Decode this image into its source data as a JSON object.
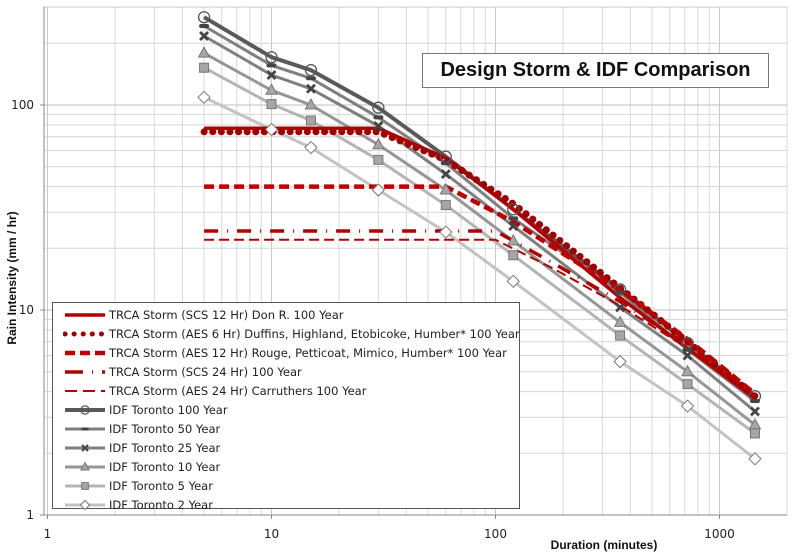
{
  "chart_data": {
    "type": "line",
    "title": "Design Storm & IDF Comparison",
    "xlabel": "Duration (minutes)",
    "ylabel": "Rain Intensity (mm / hr)",
    "x_scale": "log",
    "y_scale": "log",
    "xlim": [
      1,
      2100
    ],
    "ylim": [
      1,
      300
    ],
    "x_ticks": [
      "1",
      "10",
      "100",
      "1000"
    ],
    "y_ticks": [
      "1",
      "10",
      "100"
    ],
    "grid": true,
    "legend_position": "lower-left inside",
    "x": [
      5,
      10,
      15,
      30,
      60,
      120,
      360,
      720,
      1440
    ],
    "series": [
      {
        "name": "TRCA Storm (SCS 12 Hr) Don R. 100 Year",
        "style": "solid",
        "color": "#b30000",
        "points": [
          [
            5,
            77
          ],
          [
            30,
            77
          ],
          [
            60,
            55
          ],
          [
            120,
            31
          ],
          [
            360,
            11.5
          ],
          [
            720,
            6.5
          ],
          [
            1440,
            3.7
          ]
        ]
      },
      {
        "name": "TRCA Storm (AES 6 Hr) Duffins, Highland, Etobicoke, Humber* 100 Year",
        "style": "dotted",
        "color": "#a00000",
        "points": [
          [
            5,
            74
          ],
          [
            30,
            74
          ],
          [
            60,
            54
          ],
          [
            120,
            33
          ],
          [
            360,
            12.8
          ],
          [
            720,
            7.0
          ],
          [
            1440,
            3.8
          ]
        ]
      },
      {
        "name": "TRCA Storm (AES 12 Hr) Rouge, Petticoat, Mimico, Humber* 100 Year",
        "style": "dashed",
        "color": "#c00000",
        "points": [
          [
            5,
            40
          ],
          [
            60,
            40
          ],
          [
            120,
            27
          ],
          [
            360,
            12.5
          ],
          [
            720,
            7.2
          ],
          [
            1440,
            3.9
          ]
        ]
      },
      {
        "name": "TRCA Storm (SCS 24 Hr) 100 Year",
        "style": "dash-dot",
        "color": "#b30000",
        "points": [
          [
            5,
            24.3
          ],
          [
            100,
            24.3
          ],
          [
            180,
            17
          ],
          [
            360,
            11
          ],
          [
            720,
            6.7
          ],
          [
            1440,
            3.8
          ]
        ]
      },
      {
        "name": "TRCA Storm (AES 24 Hr)  Carruthers 100 Year",
        "style": "long-dash",
        "color": "#b30000",
        "points": [
          [
            5,
            22
          ],
          [
            100,
            22
          ],
          [
            180,
            16
          ],
          [
            360,
            10.5
          ],
          [
            720,
            6.5
          ],
          [
            1440,
            3.7
          ]
        ]
      },
      {
        "name": "IDF Toronto 100 Year",
        "marker": "circle",
        "color": "#595959",
        "values": [
          268,
          171,
          148,
          97,
          56,
          31,
          12.6,
          6.9,
          3.8
        ]
      },
      {
        "name": "IDF Toronto 50 Year",
        "marker": "dash",
        "color": "#7f7f7f",
        "values": [
          243,
          156,
          135,
          87,
          52,
          28,
          12.2,
          6.4,
          3.6
        ]
      },
      {
        "name": "IDF Toronto 25 Year",
        "marker": "x",
        "color": "#7f7f7f",
        "values": [
          217,
          140,
          120,
          79,
          46,
          25.7,
          10.3,
          6.0,
          3.2
        ]
      },
      {
        "name": "IDF Toronto 10 Year",
        "marker": "triangle",
        "color": "#969696",
        "values": [
          179,
          118,
          100,
          64,
          38.5,
          21.7,
          8.7,
          5.0,
          2.75
        ]
      },
      {
        "name": "IDF Toronto 5 Year",
        "marker": "square",
        "color": "#b4b4b4",
        "values": [
          152,
          101,
          84,
          54,
          32.5,
          18.5,
          7.5,
          4.35,
          2.5
        ]
      },
      {
        "name": "IDF Toronto 2 Year",
        "marker": "diamond",
        "color": "#c3c3c3",
        "values": [
          109,
          76,
          62,
          38.5,
          24,
          13.8,
          5.6,
          3.4,
          1.88
        ]
      }
    ]
  },
  "legend": {
    "items": [
      "TRCA Storm (SCS 12 Hr) Don R. 100 Year",
      "TRCA Storm (AES 6 Hr) Duffins, Highland, Etobicoke, Humber* 100 Year",
      "TRCA Storm (AES 12 Hr) Rouge, Petticoat, Mimico, Humber* 100 Year",
      "TRCA Storm (SCS 24 Hr) 100 Year",
      "TRCA Storm (AES 24 Hr)  Carruthers 100 Year",
      "IDF Toronto 100 Year",
      "IDF Toronto 50 Year",
      "IDF Toronto 25 Year",
      "IDF Toronto 10 Year",
      "IDF Toronto 5 Year",
      "IDF Toronto 2 Year"
    ]
  }
}
